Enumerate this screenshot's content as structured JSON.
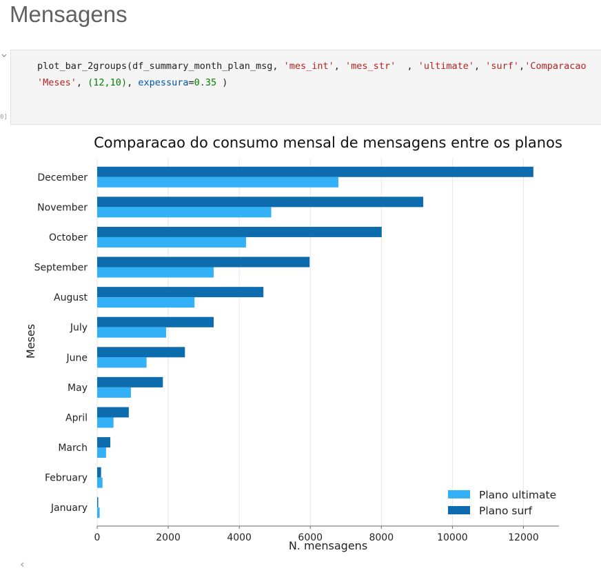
{
  "page": {
    "heading": "Mensagens",
    "exec_count": "0]"
  },
  "code": {
    "line1": {
      "fn": "plot_bar_2groups(df_summary_month_plan_msg, ",
      "s1": "'mes_int'",
      "c1": ", ",
      "s2": "'mes_str'",
      "c2": "  , ",
      "s3": "'ultimate'",
      "c3": ", ",
      "s4": "'surf'",
      "c4": ",",
      "s5": "'Comparacao"
    },
    "line2": {
      "s1": "'Meses'",
      "c1": ", ",
      "n1": "(12,10)",
      "c2": ", ",
      "kw": "expessura",
      "c3": "=",
      "n2": "0.35",
      "c4": " )"
    }
  },
  "chart_data": {
    "type": "bar",
    "orientation": "horizontal",
    "title": "Comparacao do consumo mensal de mensagens entre os planos",
    "xlabel": "N. mensagens",
    "ylabel": "Meses",
    "xlim": [
      0,
      13000
    ],
    "xticks": [
      0,
      2000,
      4000,
      6000,
      8000,
      10000,
      12000
    ],
    "grid": "vertical",
    "legend_position": "lower-right",
    "categories": [
      "January",
      "February",
      "March",
      "April",
      "May",
      "June",
      "July",
      "August",
      "September",
      "October",
      "November",
      "December"
    ],
    "series": [
      {
        "name": "Plano ultimate",
        "color": "#33b1f7",
        "values": [
          70,
          150,
          250,
          460,
          950,
          1390,
          1940,
          2740,
          3280,
          4190,
          4900,
          6790
        ]
      },
      {
        "name": "Plano surf",
        "color": "#0d6cad",
        "values": [
          20,
          110,
          370,
          890,
          1850,
          2470,
          3280,
          4680,
          5980,
          8010,
          9180,
          12280
        ]
      }
    ]
  }
}
